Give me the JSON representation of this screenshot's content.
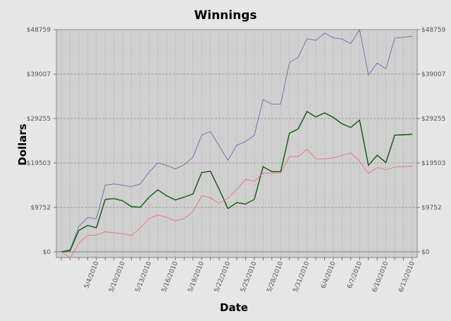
{
  "chart_data": {
    "type": "line",
    "title": "Winnings",
    "xlabel": "Date",
    "ylabel": "Dollars",
    "ylim": [
      0,
      48759
    ],
    "yticks": [
      0,
      9752,
      19503,
      29255,
      39007,
      48759
    ],
    "ytick_labels": [
      "$0",
      "$9752",
      "$19503",
      "$29255",
      "$39007",
      "$48759"
    ],
    "xtick_labels": [
      "5/4/2010",
      "5/10/2010",
      "5/13/2010",
      "5/16/2010",
      "5/19/2010",
      "5/22/2010",
      "5/25/2010",
      "5/28/2010",
      "5/31/2010",
      "6/4/2010",
      "6/7/2010",
      "6/10/2010",
      "6/13/2010"
    ],
    "xtick_positions": [
      4,
      7,
      10,
      13,
      16,
      19,
      22,
      25,
      28,
      31,
      34,
      37,
      40
    ],
    "x": [
      0,
      1,
      2,
      3,
      4,
      5,
      6,
      7,
      8,
      9,
      10,
      11,
      12,
      13,
      14,
      15,
      16,
      17,
      18,
      19,
      20,
      21,
      22,
      23,
      24,
      25,
      26,
      27,
      28,
      29,
      30,
      31,
      32,
      33,
      34,
      35,
      36,
      37,
      38,
      39,
      40
    ],
    "grid": true,
    "series": [
      {
        "color": "#6b6bb0",
        "values": [
          0,
          500,
          5600,
          7500,
          7300,
          14600,
          14900,
          14600,
          14300,
          14900,
          17500,
          19500,
          19000,
          18200,
          19100,
          20800,
          25600,
          26400,
          23200,
          20100,
          23400,
          24200,
          25600,
          33400,
          32400,
          32400,
          41500,
          42700,
          46800,
          46400,
          48000,
          47000,
          46700,
          45700,
          48759,
          38800,
          41400,
          40200,
          46900,
          47100,
          47300
        ]
      },
      {
        "color": "#0a5a0a",
        "values": [
          0,
          300,
          4700,
          5800,
          5300,
          11500,
          11700,
          11200,
          9900,
          9800,
          12000,
          13600,
          12300,
          11400,
          12000,
          12700,
          17400,
          17700,
          13700,
          9500,
          10800,
          10500,
          11500,
          18700,
          17600,
          17600,
          26000,
          27000,
          30800,
          29600,
          30500,
          29500,
          28100,
          27300,
          28900,
          19000,
          21200,
          19600,
          25600,
          25700,
          25800
        ]
      },
      {
        "color": "#f07070",
        "values": [
          0,
          -1300,
          1900,
          3600,
          3700,
          4400,
          4200,
          4000,
          3600,
          5200,
          7300,
          8100,
          7600,
          6800,
          7300,
          8800,
          12300,
          11900,
          10600,
          11800,
          13700,
          15900,
          15500,
          17300,
          17300,
          17300,
          20900,
          20900,
          22500,
          20400,
          20400,
          20600,
          21200,
          21700,
          19900,
          17200,
          18500,
          18000,
          18600,
          18700,
          18800
        ]
      }
    ]
  }
}
